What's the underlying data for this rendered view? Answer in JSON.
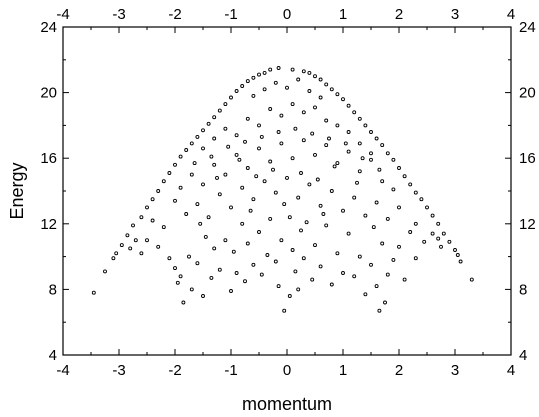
{
  "chart_data": {
    "type": "scatter",
    "title": "",
    "xlabel": "momentum",
    "ylabel": "Energy",
    "xlim": [
      -4,
      4
    ],
    "ylim": [
      4,
      24
    ],
    "x_ticks": [
      "-4",
      "-3",
      "-2",
      "-1",
      "0",
      "1",
      "2",
      "3",
      "4"
    ],
    "y_ticks": [
      "4",
      "8",
      "12",
      "16",
      "20",
      "24"
    ],
    "mirror_axes": {
      "top": true,
      "right": true
    },
    "grid": false,
    "legend": "none",
    "marker": {
      "shape": "open-circle",
      "color": "#000000"
    },
    "series": [
      {
        "points": [
          [
            -3.45,
            7.8
          ],
          [
            -3.25,
            9.1
          ],
          [
            -3.1,
            9.9
          ],
          [
            -3.05,
            10.2
          ],
          [
            -2.95,
            10.7
          ],
          [
            -2.85,
            11.3
          ],
          [
            -2.75,
            11.9
          ],
          [
            -2.6,
            12.4
          ],
          [
            -2.5,
            13.0
          ],
          [
            -2.4,
            13.5
          ],
          [
            -2.3,
            14.0
          ],
          [
            -2.2,
            14.6
          ],
          [
            -2.1,
            15.1
          ],
          [
            -2.0,
            15.6
          ],
          [
            -1.9,
            16.1
          ],
          [
            -1.8,
            16.5
          ],
          [
            -1.7,
            16.9
          ],
          [
            -1.6,
            17.3
          ],
          [
            -1.5,
            17.7
          ],
          [
            -1.4,
            18.1
          ],
          [
            -1.3,
            18.5
          ],
          [
            -1.2,
            18.9
          ],
          [
            -1.1,
            19.3
          ],
          [
            -1.0,
            19.7
          ],
          [
            -0.9,
            20.1
          ],
          [
            -0.8,
            20.4
          ],
          [
            -0.7,
            20.7
          ],
          [
            -0.6,
            20.9
          ],
          [
            -0.5,
            21.1
          ],
          [
            -0.4,
            21.2
          ],
          [
            -0.3,
            21.4
          ],
          [
            -0.15,
            21.5
          ],
          [
            0.1,
            21.4
          ],
          [
            0.3,
            21.3
          ],
          [
            0.4,
            21.2
          ],
          [
            0.5,
            21.0
          ],
          [
            0.6,
            20.8
          ],
          [
            0.7,
            20.5
          ],
          [
            0.8,
            20.2
          ],
          [
            0.9,
            19.9
          ],
          [
            1.0,
            19.6
          ],
          [
            1.1,
            19.2
          ],
          [
            1.2,
            18.8
          ],
          [
            1.3,
            18.4
          ],
          [
            1.4,
            18.0
          ],
          [
            1.5,
            17.6
          ],
          [
            1.6,
            17.2
          ],
          [
            1.7,
            16.8
          ],
          [
            1.8,
            16.3
          ],
          [
            1.9,
            15.9
          ],
          [
            2.0,
            15.4
          ],
          [
            2.1,
            14.9
          ],
          [
            2.2,
            14.4
          ],
          [
            2.3,
            13.9
          ],
          [
            2.4,
            13.5
          ],
          [
            2.5,
            13.0
          ],
          [
            2.6,
            12.5
          ],
          [
            2.7,
            12.0
          ],
          [
            2.8,
            11.4
          ],
          [
            2.9,
            10.9
          ],
          [
            3.0,
            10.4
          ],
          [
            3.05,
            10.1
          ],
          [
            3.1,
            9.7
          ],
          [
            3.3,
            8.6
          ],
          [
            -2.8,
            10.5
          ],
          [
            -2.6,
            10.2
          ],
          [
            -2.5,
            11.0
          ],
          [
            -2.3,
            10.6
          ],
          [
            -2.2,
            11.8
          ],
          [
            -2.1,
            9.9
          ],
          [
            -2.0,
            9.3
          ],
          [
            -1.95,
            8.4
          ],
          [
            -1.9,
            8.8
          ],
          [
            -1.85,
            7.2
          ],
          [
            -1.75,
            10.0
          ],
          [
            -1.7,
            8.0
          ],
          [
            -1.6,
            9.6
          ],
          [
            -1.5,
            7.6
          ],
          [
            -1.45,
            11.2
          ],
          [
            -1.35,
            8.7
          ],
          [
            -1.3,
            10.5
          ],
          [
            -1.2,
            9.2
          ],
          [
            -1.1,
            11.0
          ],
          [
            -1.0,
            7.9
          ],
          [
            -0.95,
            10.3
          ],
          [
            -0.9,
            9.0
          ],
          [
            -0.8,
            12.0
          ],
          [
            -0.75,
            8.5
          ],
          [
            -0.7,
            10.8
          ],
          [
            -0.6,
            9.5
          ],
          [
            -0.5,
            11.5
          ],
          [
            -0.45,
            8.9
          ],
          [
            -0.35,
            10.1
          ],
          [
            -0.3,
            12.3
          ],
          [
            -0.2,
            9.7
          ],
          [
            -0.15,
            8.2
          ],
          [
            -0.1,
            11.0
          ],
          [
            -0.05,
            6.7
          ],
          [
            0.05,
            7.6
          ],
          [
            0.1,
            10.4
          ],
          [
            0.15,
            9.1
          ],
          [
            0.2,
            8.0
          ],
          [
            0.25,
            11.6
          ],
          [
            0.3,
            9.9
          ],
          [
            0.35,
            12.1
          ],
          [
            0.45,
            8.6
          ],
          [
            0.5,
            10.7
          ],
          [
            0.6,
            9.4
          ],
          [
            0.7,
            11.9
          ],
          [
            0.8,
            8.3
          ],
          [
            0.9,
            10.2
          ],
          [
            1.0,
            9.0
          ],
          [
            1.1,
            11.4
          ],
          [
            1.2,
            8.8
          ],
          [
            1.3,
            10.0
          ],
          [
            1.4,
            7.7
          ],
          [
            1.5,
            9.5
          ],
          [
            1.6,
            8.2
          ],
          [
            1.65,
            6.7
          ],
          [
            1.7,
            10.8
          ],
          [
            1.75,
            7.2
          ],
          [
            1.8,
            8.9
          ],
          [
            1.9,
            9.8
          ],
          [
            2.0,
            10.6
          ],
          [
            2.1,
            8.6
          ],
          [
            2.2,
            11.5
          ],
          [
            2.3,
            9.9
          ],
          [
            2.45,
            10.9
          ],
          [
            2.6,
            11.4
          ],
          [
            2.75,
            10.6
          ],
          [
            -1.8,
            12.6
          ],
          [
            -1.6,
            13.2
          ],
          [
            -1.4,
            12.4
          ],
          [
            -1.2,
            13.8
          ],
          [
            -1.0,
            13.0
          ],
          [
            -0.8,
            14.2
          ],
          [
            -0.6,
            13.5
          ],
          [
            -0.4,
            14.6
          ],
          [
            -0.2,
            13.9
          ],
          [
            0.0,
            14.8
          ],
          [
            0.2,
            13.6
          ],
          [
            0.4,
            14.4
          ],
          [
            0.6,
            13.1
          ],
          [
            0.8,
            14.0
          ],
          [
            1.0,
            12.8
          ],
          [
            1.2,
            13.6
          ],
          [
            1.4,
            12.5
          ],
          [
            1.6,
            13.3
          ],
          [
            1.8,
            12.3
          ],
          [
            -1.9,
            14.2
          ],
          [
            -1.7,
            15.0
          ],
          [
            -1.5,
            14.4
          ],
          [
            -1.3,
            15.6
          ],
          [
            -1.1,
            15.0
          ],
          [
            -0.9,
            16.2
          ],
          [
            -0.7,
            15.4
          ],
          [
            -0.5,
            16.6
          ],
          [
            -0.3,
            15.8
          ],
          [
            -0.1,
            16.9
          ],
          [
            0.1,
            16.0
          ],
          [
            0.3,
            17.1
          ],
          [
            0.5,
            16.2
          ],
          [
            0.7,
            16.8
          ],
          [
            0.9,
            15.7
          ],
          [
            1.1,
            16.4
          ],
          [
            1.3,
            15.2
          ],
          [
            1.5,
            15.9
          ],
          [
            1.7,
            14.6
          ],
          [
            1.9,
            14.1
          ],
          [
            -1.5,
            16.6
          ],
          [
            -1.3,
            17.2
          ],
          [
            -1.1,
            17.8
          ],
          [
            -0.9,
            17.4
          ],
          [
            -0.7,
            18.4
          ],
          [
            -0.5,
            18.0
          ],
          [
            -0.3,
            19.0
          ],
          [
            -0.1,
            18.6
          ],
          [
            0.1,
            19.3
          ],
          [
            0.3,
            18.8
          ],
          [
            0.5,
            19.1
          ],
          [
            0.7,
            18.3
          ],
          [
            0.9,
            18.0
          ],
          [
            1.1,
            17.6
          ],
          [
            1.3,
            16.9
          ],
          [
            1.5,
            16.3
          ],
          [
            -0.6,
            19.8
          ],
          [
            -0.4,
            20.2
          ],
          [
            -0.2,
            20.6
          ],
          [
            0.0,
            20.3
          ],
          [
            0.2,
            20.8
          ],
          [
            0.4,
            20.1
          ],
          [
            0.6,
            19.7
          ],
          [
            -2.4,
            12.2
          ],
          [
            -2.0,
            13.4
          ],
          [
            -2.7,
            11.0
          ],
          [
            2.3,
            12.0
          ],
          [
            2.0,
            13.0
          ],
          [
            2.7,
            11.1
          ],
          [
            -0.25,
            15.3
          ],
          [
            0.25,
            15.1
          ],
          [
            -0.55,
            14.9
          ],
          [
            0.55,
            14.7
          ],
          [
            -0.85,
            15.9
          ],
          [
            0.85,
            15.5
          ],
          [
            -1.25,
            14.8
          ],
          [
            1.25,
            14.5
          ],
          [
            -1.65,
            15.7
          ],
          [
            1.65,
            15.3
          ],
          [
            -0.05,
            13.2
          ],
          [
            0.05,
            12.4
          ],
          [
            -0.15,
            17.6
          ],
          [
            0.15,
            17.8
          ],
          [
            -0.45,
            17.3
          ],
          [
            0.45,
            17.5
          ],
          [
            -0.75,
            17.0
          ],
          [
            0.75,
            17.2
          ],
          [
            -1.05,
            16.7
          ],
          [
            1.05,
            16.9
          ],
          [
            -1.35,
            16.1
          ],
          [
            1.35,
            16.0
          ],
          [
            -1.55,
            12.0
          ],
          [
            1.55,
            11.8
          ],
          [
            -0.65,
            12.8
          ],
          [
            0.65,
            12.6
          ]
        ]
      }
    ]
  }
}
